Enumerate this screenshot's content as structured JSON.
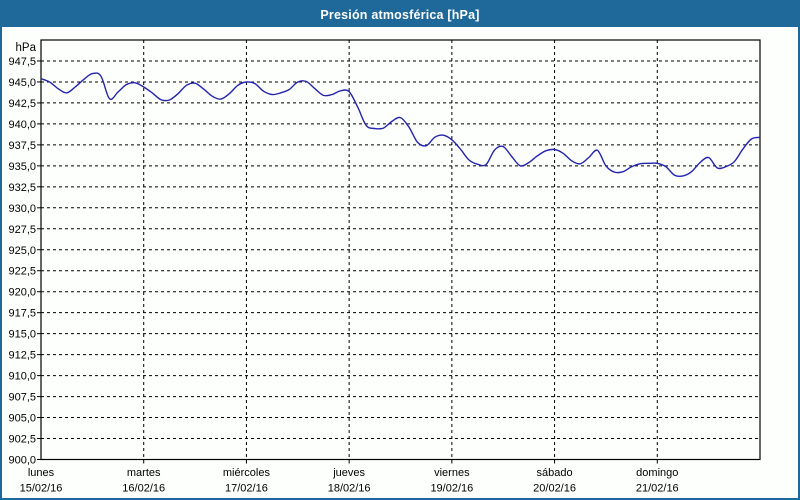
{
  "window": {
    "title": "Presión atmosférica [hPa]"
  },
  "colors": {
    "frame": "#1e689a",
    "title_bar_bg": "#1e689a",
    "title_text": "#ffffff",
    "plot_background": "#fdfffd",
    "line": "#2323ad",
    "grid": "#000000",
    "axis": "#000000",
    "label_text": "#000000"
  },
  "chart_data": {
    "type": "line",
    "title": "Presión atmosférica [hPa]",
    "ylabel": "hPa",
    "ylim": [
      900,
      950
    ],
    "ytick_step": 2.5,
    "ytick_top_label": 947.5,
    "ytick_bottom_label": 900.0,
    "decimal_separator": ",",
    "grid": "dashed",
    "legend_position": "none",
    "x_span_hours": 168,
    "sample_interval_hours": 2,
    "categories": [
      {
        "name": "lunes",
        "date": "15/02/16"
      },
      {
        "name": "martes",
        "date": "16/02/16"
      },
      {
        "name": "miércoles",
        "date": "17/02/16"
      },
      {
        "name": "jueves",
        "date": "18/02/16"
      },
      {
        "name": "viernes",
        "date": "19/02/16"
      },
      {
        "name": "sábado",
        "date": "20/02/16"
      },
      {
        "name": "domingo",
        "date": "21/02/16"
      }
    ],
    "series": [
      {
        "name": "Presión atmosférica",
        "unit": "hPa",
        "values": [
          945.4,
          945.0,
          944.2,
          943.7,
          944.4,
          945.3,
          946.0,
          945.7,
          943.0,
          943.8,
          944.7,
          944.9,
          944.4,
          943.7,
          942.9,
          942.85,
          943.6,
          944.6,
          944.85,
          944.15,
          943.3,
          942.95,
          943.6,
          944.6,
          945.0,
          944.8,
          943.9,
          943.5,
          943.7,
          944.1,
          945.0,
          945.05,
          944.2,
          943.4,
          943.5,
          943.95,
          943.85,
          942.0,
          939.8,
          939.45,
          939.5,
          940.3,
          940.75,
          939.6,
          937.8,
          937.4,
          938.4,
          938.65,
          938.1,
          937.0,
          935.7,
          935.2,
          935.15,
          936.9,
          937.3,
          936.1,
          935.0,
          935.4,
          936.2,
          936.8,
          936.95,
          936.5,
          935.6,
          935.25,
          936.0,
          936.85,
          935.0,
          934.25,
          934.3,
          934.9,
          935.25,
          935.3,
          935.3,
          934.9,
          933.9,
          933.8,
          934.3,
          935.4,
          936.0,
          934.75,
          934.9,
          935.5,
          937.0,
          938.2,
          938.4
        ]
      }
    ]
  }
}
